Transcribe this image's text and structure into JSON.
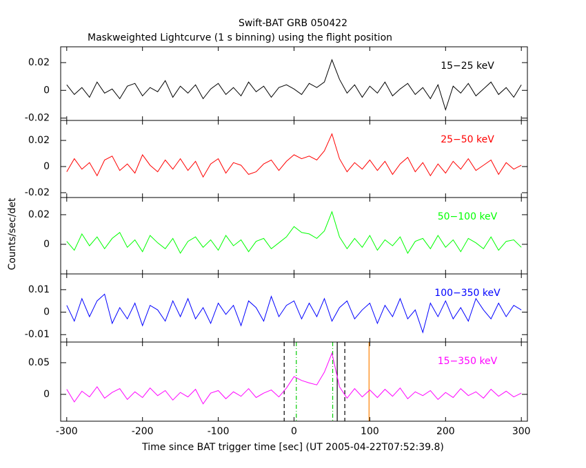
{
  "title": "Swift-BAT GRB 050422",
  "subtitle": "Maskweighted Lightcurve (1 s binning) using the flight position",
  "xlabel": "Time since BAT trigger time [sec] (UT 2005-04-22T07:52:39.8)",
  "ylabel": "Counts/sec/det",
  "chart_data": [
    {
      "type": "line",
      "label": "15−25 keV",
      "color": "#000000",
      "x": [
        -300,
        -290,
        -280,
        -270,
        -260,
        -250,
        -240,
        -230,
        -220,
        -210,
        -200,
        -190,
        -180,
        -170,
        -160,
        -150,
        -140,
        -130,
        -120,
        -110,
        -100,
        -90,
        -80,
        -70,
        -60,
        -50,
        -40,
        -30,
        -20,
        -10,
        0,
        10,
        20,
        30,
        40,
        50,
        60,
        70,
        80,
        90,
        100,
        110,
        120,
        130,
        140,
        150,
        160,
        170,
        180,
        190,
        200,
        210,
        220,
        230,
        240,
        250,
        260,
        270,
        280,
        290,
        300
      ],
      "values": [
        0.004,
        -0.003,
        0.002,
        -0.005,
        0.006,
        -0.002,
        0.001,
        -0.006,
        0.003,
        0.005,
        -0.004,
        0.002,
        -0.001,
        0.007,
        -0.005,
        0.003,
        -0.002,
        0.004,
        -0.006,
        0.001,
        0.005,
        -0.003,
        0.002,
        -0.004,
        0.006,
        -0.001,
        0.003,
        -0.005,
        0.002,
        0.004,
        0.001,
        -0.003,
        0.005,
        0.002,
        0.006,
        0.022,
        0.008,
        -0.002,
        0.004,
        -0.005,
        0.003,
        -0.002,
        0.006,
        -0.004,
        0.001,
        0.005,
        -0.003,
        0.002,
        -0.006,
        0.004,
        -0.014,
        0.003,
        -0.002,
        0.005,
        -0.004,
        0.001,
        0.006,
        -0.003,
        0.002,
        -0.005,
        0.004
      ],
      "xlim": [
        -308,
        308
      ],
      "xticks": [
        -300,
        -200,
        -100,
        0,
        100,
        200,
        300
      ],
      "ylim": [
        -0.0217,
        0.0314
      ],
      "yticks": [
        -0.02,
        0,
        0.02
      ]
    },
    {
      "type": "line",
      "label": "25−50 keV",
      "color": "#ff0000",
      "x": [
        -300,
        -290,
        -280,
        -270,
        -260,
        -250,
        -240,
        -230,
        -220,
        -210,
        -200,
        -190,
        -180,
        -170,
        -160,
        -150,
        -140,
        -130,
        -120,
        -110,
        -100,
        -90,
        -80,
        -70,
        -60,
        -50,
        -40,
        -30,
        -20,
        -10,
        0,
        10,
        20,
        30,
        40,
        50,
        60,
        70,
        80,
        90,
        100,
        110,
        120,
        130,
        140,
        150,
        160,
        170,
        180,
        190,
        200,
        210,
        220,
        230,
        240,
        250,
        260,
        270,
        280,
        290,
        300
      ],
      "values": [
        -0.004,
        0.006,
        -0.002,
        0.003,
        -0.007,
        0.005,
        0.008,
        -0.003,
        0.002,
        -0.005,
        0.009,
        0.001,
        -0.004,
        0.005,
        -0.002,
        0.006,
        -0.003,
        0.004,
        -0.008,
        0.002,
        0.006,
        -0.005,
        0.003,
        0.001,
        -0.006,
        -0.004,
        0.002,
        0.005,
        -0.003,
        0.004,
        0.009,
        0.006,
        0.008,
        0.005,
        0.012,
        0.025,
        0.006,
        -0.004,
        0.003,
        -0.002,
        0.005,
        -0.003,
        0.004,
        -0.006,
        0.002,
        0.007,
        -0.004,
        0.003,
        -0.007,
        0.002,
        -0.005,
        0.004,
        -0.002,
        0.006,
        -0.003,
        0.001,
        0.005,
        -0.006,
        0.003,
        -0.002,
        0.001
      ],
      "xlim": [
        -308,
        308
      ],
      "xticks": [
        -300,
        -200,
        -100,
        0,
        100,
        200,
        300
      ],
      "ylim": [
        -0.0237,
        0.0353
      ],
      "yticks": [
        -0.02,
        0,
        0.02
      ]
    },
    {
      "type": "line",
      "label": "50−100 keV",
      "color": "#00ff00",
      "x": [
        -300,
        -290,
        -280,
        -270,
        -260,
        -250,
        -240,
        -230,
        -220,
        -210,
        -200,
        -190,
        -180,
        -170,
        -160,
        -150,
        -140,
        -130,
        -120,
        -110,
        -100,
        -90,
        -80,
        -70,
        -60,
        -50,
        -40,
        -30,
        -20,
        -10,
        0,
        10,
        20,
        30,
        40,
        50,
        60,
        70,
        80,
        90,
        100,
        110,
        120,
        130,
        140,
        150,
        160,
        170,
        180,
        190,
        200,
        210,
        220,
        230,
        240,
        250,
        260,
        270,
        280,
        290,
        300
      ],
      "values": [
        0.002,
        -0.004,
        0.007,
        -0.001,
        0.005,
        -0.003,
        0.004,
        0.008,
        -0.002,
        0.003,
        -0.005,
        0.006,
        0.001,
        -0.003,
        0.004,
        -0.006,
        0.002,
        0.005,
        -0.002,
        0.003,
        -0.004,
        0.006,
        -0.001,
        0.003,
        -0.005,
        0.002,
        0.004,
        -0.003,
        0.001,
        0.005,
        0.012,
        0.008,
        0.007,
        0.004,
        0.009,
        0.022,
        0.005,
        -0.003,
        0.004,
        -0.002,
        0.006,
        -0.004,
        0.003,
        -0.001,
        0.005,
        -0.006,
        0.002,
        0.004,
        -0.003,
        0.006,
        -0.002,
        0.003,
        -0.005,
        0.004,
        0.001,
        -0.003,
        0.005,
        -0.004,
        0.002,
        0.003,
        -0.002
      ],
      "xlim": [
        -308,
        308
      ],
      "xticks": [
        -300,
        -200,
        -100,
        0,
        100,
        200,
        300
      ],
      "ylim": [
        -0.02,
        0.0316
      ],
      "yticks": [
        0,
        0.02
      ]
    },
    {
      "type": "line",
      "label": "100−350 keV",
      "color": "#0000ff",
      "x": [
        -300,
        -290,
        -280,
        -270,
        -260,
        -250,
        -240,
        -230,
        -220,
        -210,
        -200,
        -190,
        -180,
        -170,
        -160,
        -150,
        -140,
        -130,
        -120,
        -110,
        -100,
        -90,
        -80,
        -70,
        -60,
        -50,
        -40,
        -30,
        -20,
        -10,
        0,
        10,
        20,
        30,
        40,
        50,
        60,
        70,
        80,
        90,
        100,
        110,
        120,
        130,
        140,
        150,
        160,
        170,
        180,
        190,
        200,
        210,
        220,
        230,
        240,
        250,
        260,
        270,
        280,
        290,
        300
      ],
      "values": [
        0.003,
        -0.004,
        0.006,
        -0.002,
        0.005,
        0.008,
        -0.005,
        0.002,
        -0.003,
        0.004,
        -0.006,
        0.003,
        0.001,
        -0.004,
        0.005,
        -0.002,
        0.006,
        -0.003,
        0.002,
        -0.005,
        0.004,
        -0.001,
        0.003,
        -0.006,
        0.005,
        0.002,
        -0.004,
        0.007,
        -0.002,
        0.003,
        0.005,
        -0.003,
        0.004,
        -0.002,
        0.006,
        -0.004,
        0.002,
        0.005,
        -0.003,
        0.001,
        0.004,
        -0.005,
        0.003,
        -0.002,
        0.006,
        -0.003,
        0.001,
        -0.009,
        0.004,
        -0.002,
        0.005,
        -0.003,
        0.002,
        -0.004,
        0.006,
        0.001,
        -0.003,
        0.004,
        -0.002,
        0.003,
        0.001
      ],
      "xlim": [
        -308,
        308
      ],
      "xticks": [
        -300,
        -200,
        -100,
        0,
        100,
        200,
        300
      ],
      "ylim": [
        -0.0133,
        0.017
      ],
      "yticks": [
        -0.01,
        0,
        0.01
      ]
    },
    {
      "type": "line",
      "label": "15−350 keV",
      "color": "#ff00ff",
      "x": [
        -300,
        -290,
        -280,
        -270,
        -260,
        -250,
        -240,
        -230,
        -220,
        -210,
        -200,
        -190,
        -180,
        -170,
        -160,
        -150,
        -140,
        -130,
        -120,
        -110,
        -100,
        -90,
        -80,
        -70,
        -60,
        -50,
        -40,
        -30,
        -20,
        -10,
        0,
        10,
        20,
        30,
        40,
        50,
        60,
        70,
        80,
        90,
        100,
        110,
        120,
        130,
        140,
        150,
        160,
        170,
        180,
        190,
        200,
        210,
        220,
        230,
        240,
        250,
        260,
        270,
        280,
        290,
        300
      ],
      "values": [
        0.008,
        -0.012,
        0.005,
        -0.004,
        0.012,
        -0.006,
        0.003,
        0.009,
        -0.008,
        0.004,
        -0.005,
        0.01,
        -0.002,
        0.006,
        -0.009,
        0.003,
        -0.004,
        0.008,
        -0.015,
        0.002,
        0.006,
        -0.007,
        0.004,
        -0.003,
        0.009,
        -0.005,
        0.002,
        0.007,
        -0.004,
        0.01,
        0.028,
        0.022,
        0.018,
        0.015,
        0.035,
        0.065,
        0.012,
        -0.006,
        0.009,
        -0.004,
        0.007,
        -0.005,
        0.008,
        -0.003,
        0.01,
        -0.007,
        0.004,
        -0.002,
        0.006,
        -0.008,
        0.003,
        -0.005,
        0.009,
        -0.002,
        0.004,
        -0.006,
        0.008,
        -0.003,
        0.005,
        -0.004,
        0.002
      ],
      "xlim": [
        -308,
        308
      ],
      "xticks": [
        -300,
        -200,
        -100,
        0,
        100,
        200,
        300
      ],
      "ylim": [
        -0.0424,
        0.0826
      ],
      "yticks": [
        0,
        0.05
      ],
      "vlines": [
        {
          "x": -13,
          "color": "#000000",
          "style": "dashed"
        },
        {
          "x": 3,
          "color": "#00cc00",
          "style": "dashdot"
        },
        {
          "x": 51,
          "color": "#00cc00",
          "style": "dashdot"
        },
        {
          "x": 57,
          "color": "#000000",
          "style": "solid"
        },
        {
          "x": 67,
          "color": "#000000",
          "style": "dashed"
        },
        {
          "x": 99,
          "color": "#ff8000",
          "style": "solid"
        }
      ]
    }
  ]
}
